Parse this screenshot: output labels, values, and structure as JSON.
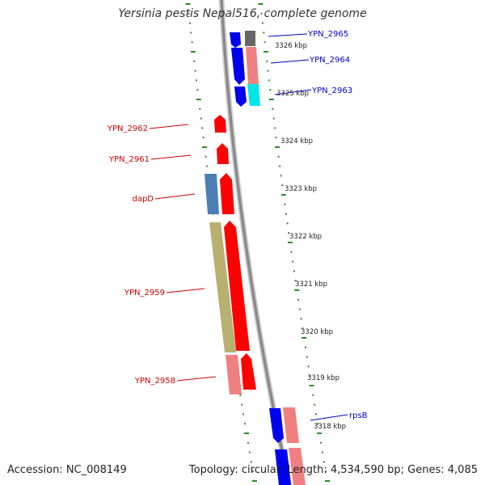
{
  "title": "Yersinia pestis Nepal516, complete genome",
  "footer": {
    "accession_text": "Accession: NC_008149",
    "summary_text": "Topology: circular; Length: 4,534,590 bp; Genes: 4,085"
  },
  "colors": {
    "backbone": "#8a8a8a",
    "tick": "#2e8b2e",
    "forward_label": "#0000cc",
    "reverse_label": "#cc0000",
    "blue_gene": "#0000ee",
    "red_gene": "#ff0000",
    "pink_feature": "#f08080",
    "steelblue_feature": "#4a7fb5",
    "olive_feature": "#b8b070",
    "cyan_feature": "#00e5e5",
    "gray_feature": "#666666"
  },
  "scale_labels": [
    "3326 kbp",
    "3325 kbp",
    "3324 kbp",
    "3323 kbp",
    "3322 kbp",
    "3321 kbp",
    "3320 kbp",
    "3319 kbp",
    "3318 kbp"
  ],
  "gene_labels": {
    "forward": [
      "YPN_2965",
      "YPN_2964",
      "YPN_2963",
      "rpsB"
    ],
    "reverse": [
      "YPN_2962",
      "YPN_2961",
      "dapD",
      "YPN_2959",
      "YPN_2958"
    ]
  }
}
